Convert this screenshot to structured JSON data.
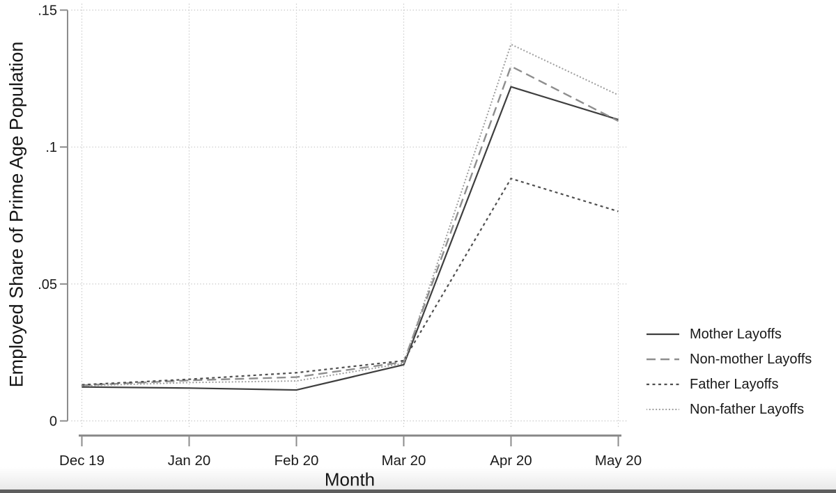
{
  "chart_data": {
    "type": "line",
    "title": "",
    "xlabel": "Month",
    "ylabel": "Employed Share of Prime Age Population",
    "categories": [
      "Dec 19",
      "Jan 20",
      "Feb 20",
      "Mar 20",
      "Apr 20",
      "May 20"
    ],
    "y_ticks": [
      {
        "value": 0,
        "label": "0"
      },
      {
        "value": 0.05,
        "label": ".05"
      },
      {
        "value": 0.1,
        "label": ".1"
      },
      {
        "value": 0.15,
        "label": ".15"
      }
    ],
    "ylim": [
      0,
      0.15
    ],
    "grid": true,
    "legend_position": "right",
    "series": [
      {
        "name": "Mother Layoffs",
        "style": "solid",
        "color": "#3e3e3e",
        "width": 2.2,
        "values": [
          0.0124,
          0.012,
          0.0113,
          0.0205,
          0.122,
          0.11
        ]
      },
      {
        "name": "Non-mother Layoffs",
        "style": "long-dash",
        "color": "#8e8e8e",
        "width": 2.4,
        "values": [
          0.013,
          0.0148,
          0.016,
          0.0215,
          0.1295,
          0.1095
        ]
      },
      {
        "name": "Father Layoffs",
        "style": "short-dash",
        "color": "#4f4f4f",
        "width": 2.2,
        "values": [
          0.0132,
          0.0152,
          0.0176,
          0.022,
          0.0885,
          0.0765
        ]
      },
      {
        "name": "Non-father Layoffs",
        "style": "dot",
        "color": "#9e9e9e",
        "width": 2.2,
        "values": [
          0.0128,
          0.014,
          0.0146,
          0.021,
          0.1375,
          0.119
        ]
      }
    ],
    "style_colors": {
      "axis": "#8c8c8c",
      "gridline": "#c6c6c6",
      "tick_text": "#1a1a1a",
      "bottom_strip": "#5e5e5e"
    }
  }
}
